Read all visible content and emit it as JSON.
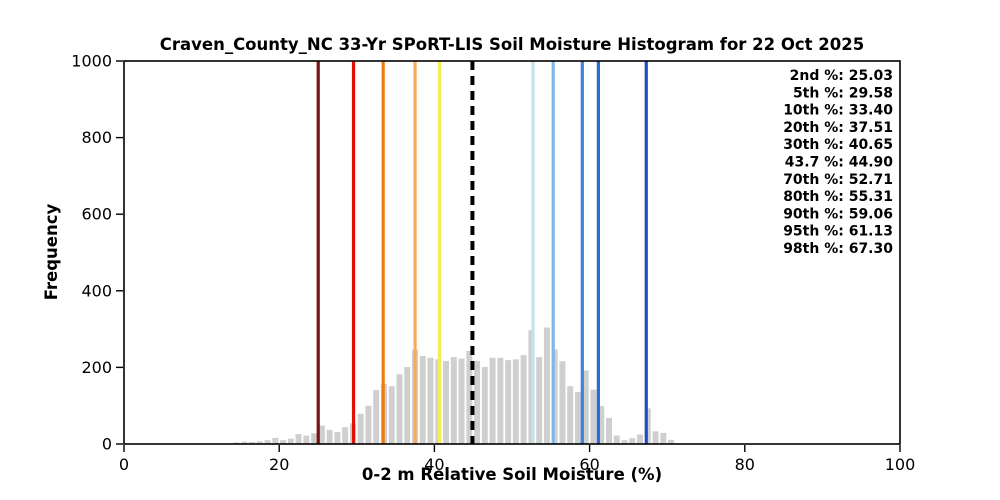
{
  "chart_data": {
    "type": "bar",
    "title": "Craven_County_NC 33-Yr SPoRT-LIS Soil Moisture Histogram for 22 Oct 2025",
    "xlabel": "0-2 m Relative Soil Moisture (%)",
    "ylabel": "Frequency",
    "xlim": [
      0,
      100
    ],
    "ylim": [
      0,
      1000
    ],
    "x_ticks": [
      0,
      20,
      40,
      60,
      80,
      100
    ],
    "y_ticks": [
      0,
      200,
      400,
      600,
      800,
      1000
    ],
    "grid": false,
    "legend_position": "upper right",
    "bar_color": "#cfcfcf",
    "bin_width": 1,
    "bins_start": [
      14,
      15,
      16,
      17,
      18,
      19,
      20,
      21,
      22,
      23,
      24,
      25,
      26,
      27,
      28,
      29,
      30,
      31,
      32,
      33,
      34,
      35,
      36,
      37,
      38,
      39,
      40,
      41,
      42,
      43,
      44,
      45,
      46,
      47,
      48,
      49,
      50,
      51,
      52,
      53,
      54,
      55,
      56,
      57,
      58,
      59,
      60,
      61,
      62,
      63,
      64,
      65,
      66,
      67,
      68,
      69,
      70
    ],
    "frequencies": [
      4,
      6,
      5,
      7,
      10,
      16,
      10,
      14,
      26,
      22,
      28,
      48,
      37,
      31,
      44,
      54,
      79,
      100,
      141,
      157,
      151,
      182,
      201,
      246,
      230,
      225,
      221,
      217,
      227,
      223,
      243,
      217,
      201,
      225,
      225,
      219,
      221,
      232,
      297,
      227,
      304,
      247,
      216,
      151,
      136,
      192,
      142,
      99,
      68,
      22,
      10,
      15,
      25,
      93,
      33,
      29,
      11
    ],
    "percentile_lines": [
      {
        "label": "2nd %: 25.03",
        "percentile": "2nd",
        "value": 25.03,
        "color": "#791311",
        "style": "solid"
      },
      {
        "label": "5th %: 29.58",
        "percentile": "5th",
        "value": 29.58,
        "color": "#e01208",
        "style": "solid"
      },
      {
        "label": "10th %: 33.40",
        "percentile": "10th",
        "value": 33.4,
        "color": "#e97d12",
        "style": "solid"
      },
      {
        "label": "20th %: 37.51",
        "percentile": "20th",
        "value": 37.51,
        "color": "#f5ab5c",
        "style": "solid"
      },
      {
        "label": "30th %: 40.65",
        "percentile": "30th",
        "value": 40.65,
        "color": "#f0ef55",
        "style": "solid"
      },
      {
        "label": "43.7 %: 44.90",
        "percentile": "43.7",
        "value": 44.9,
        "color": "#000000",
        "style": "dashed"
      },
      {
        "label": "70th %: 52.71",
        "percentile": "70th",
        "value": 52.71,
        "color": "#c5e1eb",
        "style": "solid"
      },
      {
        "label": "80th %: 55.31",
        "percentile": "80th",
        "value": 55.31,
        "color": "#82b6e6",
        "style": "solid"
      },
      {
        "label": "90th %: 59.06",
        "percentile": "90th",
        "value": 59.06,
        "color": "#3f83d8",
        "style": "solid"
      },
      {
        "label": "95th %: 61.13",
        "percentile": "95th",
        "value": 61.13,
        "color": "#2b6ad0",
        "style": "solid"
      },
      {
        "label": "98th %: 67.30",
        "percentile": "98th",
        "value": 67.3,
        "color": "#1c50c0",
        "style": "solid"
      }
    ]
  }
}
